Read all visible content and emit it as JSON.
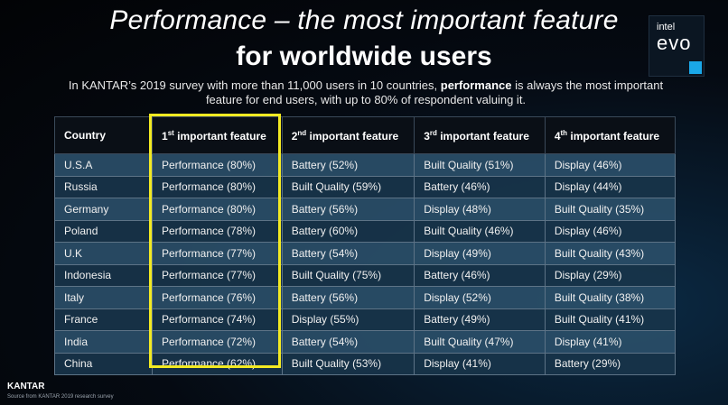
{
  "title_line1": "Performance – the most important feature",
  "title_line2": "for worldwide users",
  "subtitle_pre": "In KANTAR’s 2019 survey with more than 11,000 users  in 10 countries, ",
  "subtitle_bold": "performance",
  "subtitle_post": " is always the most important feature for end users, with up to 80% of respondent valuing it.",
  "logo": {
    "line1": "intel",
    "line2": "evo"
  },
  "table": {
    "headers": [
      {
        "text": "Country",
        "sup": "",
        "rest": ""
      },
      {
        "text": "1",
        "sup": "st",
        "rest": " important feature"
      },
      {
        "text": "2",
        "sup": "nd",
        "rest": " important feature"
      },
      {
        "text": "3",
        "sup": "rd",
        "rest": " important feature"
      },
      {
        "text": "4",
        "sup": "th",
        "rest": " important feature"
      }
    ],
    "rows": [
      [
        "U.S.A",
        "Performance (80%)",
        "Battery (52%)",
        "Built Quality (51%)",
        "Display (46%)"
      ],
      [
        "Russia",
        "Performance (80%)",
        "Built Quality (59%)",
        "Battery (46%)",
        "Display (44%)"
      ],
      [
        "Germany",
        "Performance (80%)",
        "Battery (56%)",
        "Display (48%)",
        "Built Quality (35%)"
      ],
      [
        "Poland",
        "Performance (78%)",
        "Battery (60%)",
        "Built Quality (46%)",
        "Display (46%)"
      ],
      [
        "U.K",
        "Performance (77%)",
        "Battery (54%)",
        "Display (49%)",
        "Built Quality (43%)"
      ],
      [
        "Indonesia",
        "Performance (77%)",
        "Built Quality (75%)",
        "Battery (46%)",
        "Display (29%)"
      ],
      [
        "Italy",
        "Performance (76%)",
        "Battery (56%)",
        "Display (52%)",
        "Built Quality (38%)"
      ],
      [
        "France",
        "Performance (74%)",
        "Display (55%)",
        "Battery (49%)",
        "Built Quality (41%)"
      ],
      [
        "India",
        "Performance (72%)",
        "Battery (54%)",
        "Built Quality (47%)",
        "Display (41%)"
      ],
      [
        "China",
        "Performance (62%)",
        "Built Quality (53%)",
        "Display (41%)",
        "Battery (29%)"
      ]
    ]
  },
  "highlight_color": "#f3ea22",
  "footer": {
    "brand": "KANTAR",
    "source": "Source from KANTAR 2019 research survey"
  }
}
